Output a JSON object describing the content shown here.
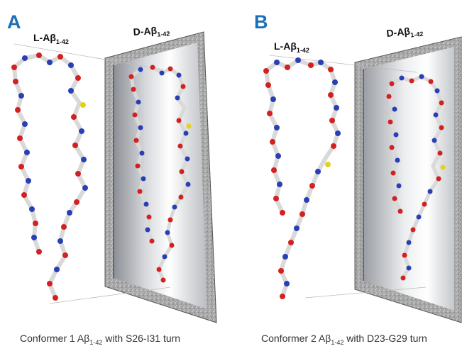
{
  "panels": [
    {
      "letter": "A",
      "left_label": {
        "main": "L-Aβ",
        "sub": "1-42"
      },
      "right_label": {
        "main": "D-Aβ",
        "sub": "1-42"
      },
      "caption": {
        "pre": "Conformer 1 Aβ",
        "sub": "1-42",
        "post": " with S26-I31 turn"
      }
    },
    {
      "letter": "B",
      "left_label": {
        "main": "L-Aβ",
        "sub": "1-42"
      },
      "right_label": {
        "main": "D-Aβ",
        "sub": "1-42"
      },
      "caption": {
        "pre": "Conformer 2 Aβ",
        "sub": "1-42",
        "post": " with D23-G29 turn"
      }
    }
  ],
  "colors": {
    "letter": "#1d6fb8",
    "backbone": "#d9d9d9",
    "oxygen": "#d42020",
    "nitrogen": "#2a3fb5",
    "sulfur": "#e4d21a",
    "frame": "#9a9a9a"
  }
}
